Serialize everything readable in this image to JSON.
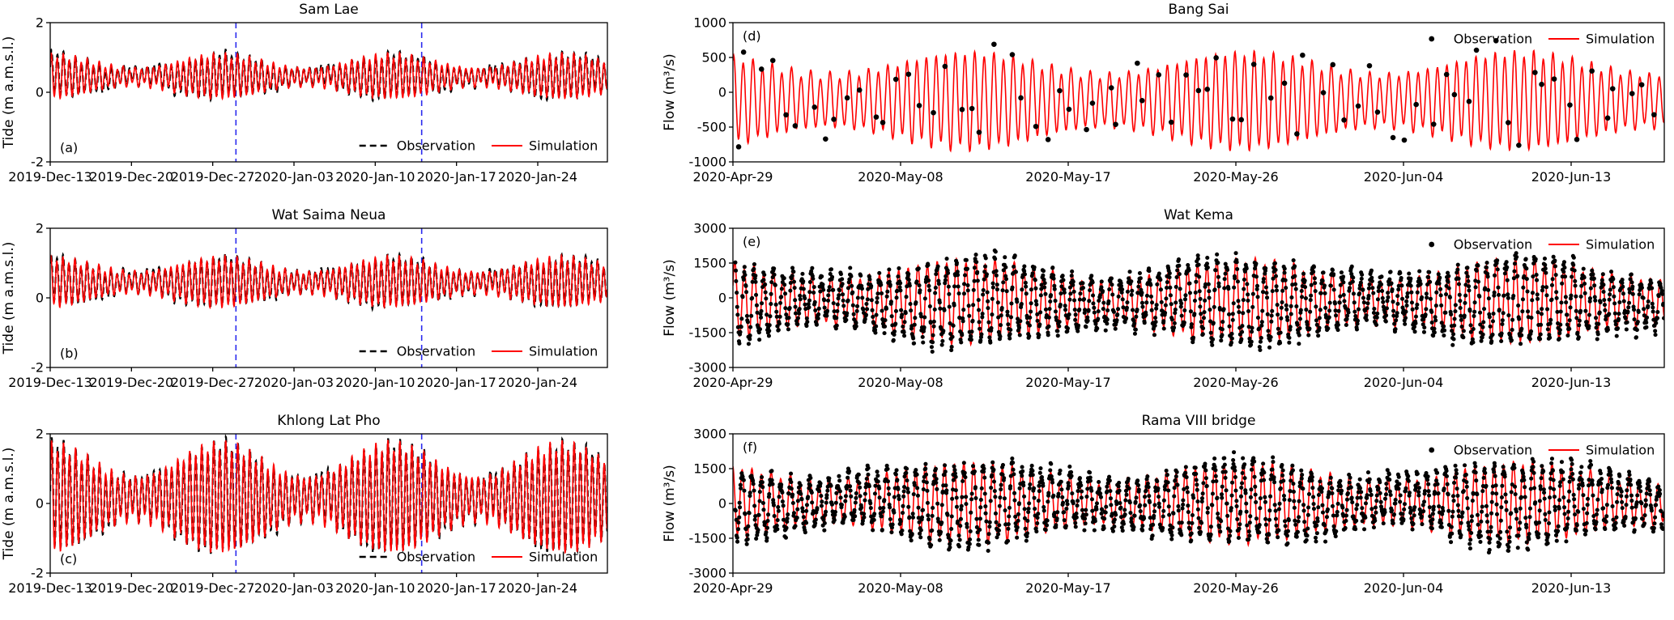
{
  "colors": {
    "observation": "#000000",
    "simulation": "#fe0000",
    "event_line": "#2a2aee",
    "axis": "#000000",
    "background": "#ffffff"
  },
  "legend": {
    "observation_label": "Observation",
    "simulation_label": "Simulation"
  },
  "chart_data": [
    {
      "id": "a",
      "type": "line",
      "column": "left",
      "title": "Sam Lae",
      "panel_label": "(a)",
      "ylabel": "Tide (m a.m.s.l.)",
      "ylim": [
        -2,
        2
      ],
      "yticks": [
        -2,
        0,
        2
      ],
      "x_max_days": 48,
      "xtick_days": [
        0,
        7,
        14,
        21,
        28,
        35,
        42
      ],
      "xtick_labels": [
        "2019-Dec-13",
        "2019-Dec-20",
        "2019-Dec-27",
        "2020-Jan-03",
        "2020-Jan-10",
        "2020-Jan-17",
        "2020-Jan-24"
      ],
      "event_lines_days": [
        16,
        32
      ],
      "legend_pos": "bottom-right",
      "observation_style": "dashed",
      "signal": {
        "mean": 0.45,
        "amp": 0.42,
        "spring_mod": 0.45,
        "spring_phase": 1.63,
        "semi_period_h": 12.42,
        "spring_period_h": 354.4,
        "diurnal": 0.08,
        "diurnal_period_h": 23.93,
        "phase": 0.5
      },
      "observation": {
        "lag_h": 0.4,
        "noise": 0.06,
        "interval_h": 0,
        "marker": 0,
        "seed": 11
      }
    },
    {
      "id": "d",
      "type": "line",
      "column": "right",
      "title": "Bang Sai",
      "panel_label": "(d)",
      "ylabel": "Flow  (m³/s)",
      "ylim": [
        -1000,
        1000
      ],
      "yticks": [
        -1000,
        -500,
        0,
        500,
        1000
      ],
      "x_max_days": 50,
      "xtick_days": [
        0,
        9,
        18,
        27,
        36,
        45
      ],
      "xtick_labels": [
        "2020-Apr-29",
        "2020-May-08",
        "2020-May-17",
        "2020-May-26",
        "2020-Jun-04",
        "2020-Jun-13"
      ],
      "event_lines_days": [],
      "legend_pos": "top-right",
      "observation_style": "dots",
      "signal": {
        "mean": -120,
        "amp": 520,
        "spring_mod": 0.3,
        "spring_phase": 2.48,
        "semi_period_h": 12.42,
        "spring_period_h": 354.4,
        "diurnal": 60,
        "diurnal_period_h": 23.93,
        "phase": 1.1
      },
      "observation": {
        "lag_h": 0,
        "noise": 200,
        "interval_h": 16,
        "marker": 6.5,
        "seed": 44
      }
    },
    {
      "id": "b",
      "type": "line",
      "column": "left",
      "title": "Wat Saima Neua",
      "panel_label": "(b)",
      "ylabel": "Tide (m a.m.s.l.)",
      "ylim": [
        -2,
        2
      ],
      "yticks": [
        -2,
        0,
        2
      ],
      "x_max_days": 48,
      "xtick_days": [
        0,
        7,
        14,
        21,
        28,
        35,
        42
      ],
      "xtick_labels": [
        "2019-Dec-13",
        "2019-Dec-20",
        "2019-Dec-27",
        "2020-Jan-03",
        "2020-Jan-10",
        "2020-Jan-17",
        "2020-Jan-24"
      ],
      "event_lines_days": [
        16,
        32
      ],
      "legend_pos": "bottom-right",
      "observation_style": "dashed",
      "signal": {
        "mean": 0.45,
        "amp": 0.48,
        "spring_mod": 0.42,
        "spring_phase": 1.63,
        "semi_period_h": 12.42,
        "spring_period_h": 354.4,
        "diurnal": 0.09,
        "diurnal_period_h": 23.93,
        "phase": 0.9
      },
      "observation": {
        "lag_h": 0.35,
        "noise": 0.05,
        "interval_h": 0,
        "marker": 0,
        "seed": 22
      }
    },
    {
      "id": "e",
      "type": "line",
      "column": "right",
      "title": "Wat Kema",
      "panel_label": "(e)",
      "ylabel": "Flow  (m³/s)",
      "ylim": [
        -3000,
        3000
      ],
      "yticks": [
        -3000,
        -1500,
        0,
        1500,
        3000
      ],
      "x_max_days": 50,
      "xtick_days": [
        0,
        9,
        18,
        27,
        36,
        45
      ],
      "xtick_labels": [
        "2020-Apr-29",
        "2020-May-08",
        "2020-May-17",
        "2020-May-26",
        "2020-Jun-04",
        "2020-Jun-13"
      ],
      "event_lines_days": [],
      "legend_pos": "top-right",
      "observation_style": "dots",
      "signal": {
        "mean": -150,
        "amp": 1350,
        "spring_mod": 0.3,
        "spring_phase": 2.48,
        "semi_period_h": 12.42,
        "spring_period_h": 354.4,
        "diurnal": 150,
        "diurnal_period_h": 23.93,
        "phase": 0.4
      },
      "observation": {
        "lag_h": 0,
        "noise": 280,
        "interval_h": 0.6,
        "marker": 5,
        "seed": 55
      }
    },
    {
      "id": "c",
      "type": "line",
      "column": "left",
      "title": "Khlong  Lat Pho",
      "panel_label": "(c)",
      "ylabel": "Tide (m a.m.s.l.)",
      "ylim": [
        -2,
        2
      ],
      "yticks": [
        -2,
        0,
        2
      ],
      "x_max_days": 48,
      "xtick_days": [
        0,
        7,
        14,
        21,
        28,
        35,
        42
      ],
      "xtick_labels": [
        "2019-Dec-13",
        "2019-Dec-20",
        "2019-Dec-27",
        "2020-Jan-03",
        "2020-Jan-10",
        "2020-Jan-17",
        "2020-Jan-24"
      ],
      "event_lines_days": [
        16,
        32
      ],
      "legend_pos": "bottom-right",
      "observation_style": "dashed",
      "signal": {
        "mean": 0.15,
        "amp": 1.05,
        "spring_mod": 0.45,
        "spring_phase": 1.63,
        "semi_period_h": 12.42,
        "spring_period_h": 354.4,
        "diurnal": 0.15,
        "diurnal_period_h": 23.93,
        "phase": 0.2
      },
      "observation": {
        "lag_h": 0.3,
        "noise": 0.07,
        "interval_h": 0,
        "marker": 0,
        "seed": 33
      }
    },
    {
      "id": "f",
      "type": "line",
      "column": "right",
      "title": "Rama VIII bridge",
      "panel_label": "(f)",
      "ylabel": "Flow  (m³/s)",
      "ylim": [
        -3000,
        3000
      ],
      "yticks": [
        -3000,
        -1500,
        0,
        1500,
        3000
      ],
      "x_max_days": 50,
      "xtick_days": [
        0,
        9,
        18,
        27,
        36,
        45
      ],
      "xtick_labels": [
        "2020-Apr-29",
        "2020-May-08",
        "2020-May-17",
        "2020-May-26",
        "2020-Jun-04",
        "2020-Jun-13"
      ],
      "event_lines_days": [],
      "legend_pos": "top-right",
      "observation_style": "dots",
      "signal": {
        "mean": 40,
        "amp": 1300,
        "spring_mod": 0.3,
        "spring_phase": 2.48,
        "semi_period_h": 12.42,
        "spring_period_h": 354.4,
        "diurnal": 150,
        "diurnal_period_h": 23.93,
        "phase": 1.8
      },
      "observation": {
        "lag_h": 0,
        "noise": 300,
        "interval_h": 0.6,
        "marker": 5,
        "seed": 66
      }
    }
  ]
}
